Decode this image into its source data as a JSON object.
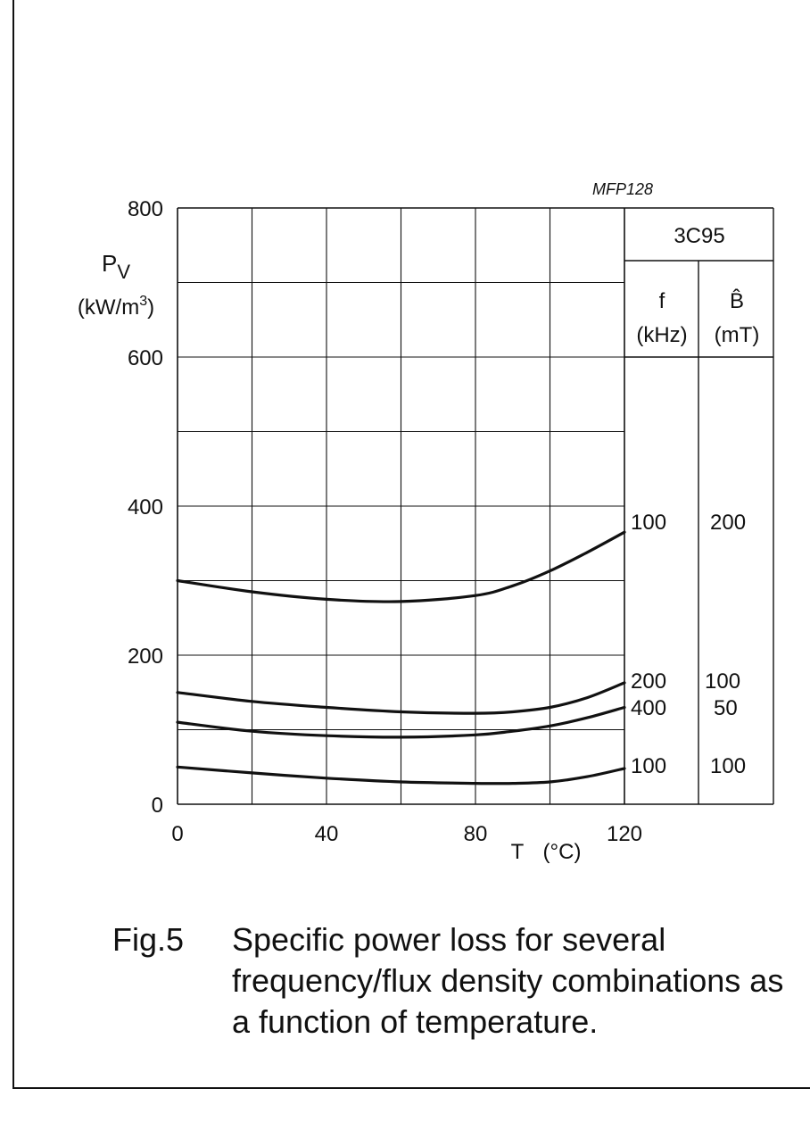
{
  "chart_data": {
    "type": "line",
    "code": "MFP128",
    "material": "3C95",
    "xlabel": "T",
    "xlabel_unit": "(°C)",
    "ylabel": "P",
    "ylabel_sub": "V",
    "ylabel_unit": "(kW/m",
    "ylabel_unit_sup": "3",
    "ylabel_unit_close": ")",
    "xlim": [
      0,
      120
    ],
    "ylim": [
      0,
      800
    ],
    "x_ticks": [
      "0",
      "40",
      "80",
      "120"
    ],
    "y_ticks": [
      "0",
      "200",
      "400",
      "600",
      "800"
    ],
    "grid": true,
    "table": {
      "col1_header": "f",
      "col1_unit": "(kHz)",
      "col2_header": "B̂",
      "col2_unit": "(mT)"
    },
    "series": [
      {
        "f": "100",
        "b": "200",
        "x": [
          0,
          20,
          40,
          60,
          80,
          90,
          100,
          110,
          120
        ],
        "y": [
          300,
          285,
          275,
          272,
          280,
          293,
          313,
          338,
          365
        ]
      },
      {
        "f": "200",
        "b": "100",
        "x": [
          0,
          20,
          40,
          60,
          80,
          90,
          100,
          110,
          120
        ],
        "y": [
          150,
          138,
          130,
          124,
          122,
          124,
          130,
          143,
          163
        ]
      },
      {
        "f": "400",
        "b": "50",
        "x": [
          0,
          20,
          40,
          60,
          80,
          90,
          100,
          110,
          120
        ],
        "y": [
          110,
          98,
          92,
          90,
          93,
          98,
          105,
          116,
          130
        ]
      },
      {
        "f": "100",
        "b": "100",
        "x": [
          0,
          20,
          40,
          60,
          80,
          90,
          100,
          110,
          120
        ],
        "y": [
          50,
          42,
          35,
          30,
          28,
          28,
          30,
          37,
          48
        ]
      }
    ]
  },
  "caption": {
    "number": "Fig.5",
    "text": "Specific power loss for several frequency/flux density combinations as a function of temperature."
  }
}
